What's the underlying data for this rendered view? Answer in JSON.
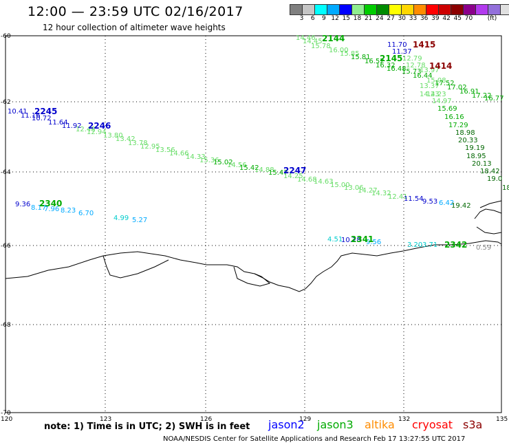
{
  "header": {
    "title": "12:00 — 23:59 UTC 02/16/2017",
    "subtitle": "12 hour collection of altimeter wave heights"
  },
  "colorbar": {
    "colors": [
      "#808080",
      "#c6c6c6",
      "#00ffff",
      "#00aaff",
      "#0000ff",
      "#90ee90",
      "#00cd00",
      "#008b00",
      "#ffff00",
      "#ffd700",
      "#ff8c00",
      "#ff0000",
      "#cd0000",
      "#8b0000",
      "#8b008b",
      "#b23aee",
      "#9370db",
      "#e0e0e0",
      "#000000"
    ],
    "labels": [
      "3",
      "6",
      "9",
      "12",
      "15",
      "18",
      "21",
      "24",
      "27",
      "30",
      "33",
      "36",
      "39",
      "42",
      "45",
      "70"
    ],
    "unit": "(ft)"
  },
  "axes": {
    "lat_labels": [
      "-60",
      "-62",
      "-64",
      "-66",
      "-68",
      "-70"
    ],
    "lon_labels": [
      "120",
      "123",
      "126",
      "129",
      "132",
      "135"
    ]
  },
  "passes": [
    {
      "id": "2144",
      "color": "#00aa00"
    },
    {
      "id": "2145",
      "color": "#00aa00"
    },
    {
      "id": "1415",
      "color": "#8b0000"
    },
    {
      "id": "1414",
      "color": "#8b0000"
    },
    {
      "id": "2245",
      "color": "#0000cc"
    },
    {
      "id": "2246",
      "color": "#0000cc"
    },
    {
      "id": "2247",
      "color": "#0000cc"
    },
    {
      "id": "2340",
      "color": "#00aa00"
    },
    {
      "id": "2341",
      "color": "#00aa00"
    },
    {
      "id": "2342",
      "color": "#00aa00"
    }
  ],
  "values": [
    {
      "t": "14.46",
      "c": "#66dd66"
    },
    {
      "t": "14.45",
      "c": "#66dd66"
    },
    {
      "t": "15.78",
      "c": "#66dd66"
    },
    {
      "t": "16.00",
      "c": "#66dd66"
    },
    {
      "t": "15.85",
      "c": "#66dd66"
    },
    {
      "t": "15.81",
      "c": "#00aa00"
    },
    {
      "t": "16.52",
      "c": "#00aa00"
    },
    {
      "t": "16.32",
      "c": "#00aa00"
    },
    {
      "t": "16.48",
      "c": "#00aa00"
    },
    {
      "t": "15.73",
      "c": "#00aa00"
    },
    {
      "t": "16.44",
      "c": "#00aa00"
    },
    {
      "t": "11.70",
      "c": "#0000cc"
    },
    {
      "t": "11.37",
      "c": "#0000cc"
    },
    {
      "t": "12.79",
      "c": "#66dd66"
    },
    {
      "t": "12.78",
      "c": "#66dd66"
    },
    {
      "t": "13.97",
      "c": "#66dd66"
    },
    {
      "t": "15.08",
      "c": "#66dd66"
    },
    {
      "t": "14.23",
      "c": "#66dd66"
    },
    {
      "t": "13.37",
      "c": "#66dd66"
    },
    {
      "t": "17.52",
      "c": "#00aa00"
    },
    {
      "t": "17.02",
      "c": "#00aa00"
    },
    {
      "t": "16.91",
      "c": "#00aa00"
    },
    {
      "t": "17.22",
      "c": "#00aa00"
    },
    {
      "t": "16.77",
      "c": "#00aa00"
    },
    {
      "t": "14.23",
      "c": "#66dd66"
    },
    {
      "t": "14.97",
      "c": "#66dd66"
    },
    {
      "t": "15.69",
      "c": "#00aa00"
    },
    {
      "t": "16.16",
      "c": "#00aa00"
    },
    {
      "t": "17.29",
      "c": "#00aa00"
    },
    {
      "t": "18.98",
      "c": "#006600"
    },
    {
      "t": "20.33",
      "c": "#006600"
    },
    {
      "t": "19.19",
      "c": "#006600"
    },
    {
      "t": "18.95",
      "c": "#006600"
    },
    {
      "t": "20.13",
      "c": "#006600"
    },
    {
      "t": "18.42",
      "c": "#006600"
    },
    {
      "t": "19.0",
      "c": "#006600"
    },
    {
      "t": "18",
      "c": "#006600"
    },
    {
      "t": "10.41",
      "c": "#0000cc"
    },
    {
      "t": "11.16",
      "c": "#0000cc"
    },
    {
      "t": "10.72",
      "c": "#0000cc"
    },
    {
      "t": "11.64",
      "c": "#0000cc"
    },
    {
      "t": "11.92",
      "c": "#0000cc"
    },
    {
      "t": "12.48",
      "c": "#66dd66"
    },
    {
      "t": "12.94",
      "c": "#66dd66"
    },
    {
      "t": "13.80",
      "c": "#66dd66"
    },
    {
      "t": "13.42",
      "c": "#66dd66"
    },
    {
      "t": "13.78",
      "c": "#66dd66"
    },
    {
      "t": "12.95",
      "c": "#66dd66"
    },
    {
      "t": "13.56",
      "c": "#66dd66"
    },
    {
      "t": "14.66",
      "c": "#66dd66"
    },
    {
      "t": "14.33",
      "c": "#66dd66"
    },
    {
      "t": "15.36",
      "c": "#66dd66"
    },
    {
      "t": "15.02",
      "c": "#00aa00"
    },
    {
      "t": "14.56",
      "c": "#66dd66"
    },
    {
      "t": "15.42",
      "c": "#00aa00"
    },
    {
      "t": "14.88",
      "c": "#66dd66"
    },
    {
      "t": "15.47",
      "c": "#00aa00"
    },
    {
      "t": "14.25",
      "c": "#66dd66"
    },
    {
      "t": "14.68",
      "c": "#66dd66"
    },
    {
      "t": "14.63",
      "c": "#66dd66"
    },
    {
      "t": "15.00",
      "c": "#66dd66"
    },
    {
      "t": "13.06",
      "c": "#66dd66"
    },
    {
      "t": "14.27",
      "c": "#66dd66"
    },
    {
      "t": "14.32",
      "c": "#66dd66"
    },
    {
      "t": "12.41",
      "c": "#66dd66"
    },
    {
      "t": "11.54",
      "c": "#0000cc"
    },
    {
      "t": "9.53",
      "c": "#0000cc"
    },
    {
      "t": "6.42",
      "c": "#00aaff"
    },
    {
      "t": "19.42",
      "c": "#006600"
    },
    {
      "t": "9.36",
      "c": "#0000cc"
    },
    {
      "t": "8.17",
      "c": "#00aaff"
    },
    {
      "t": "7.96",
      "c": "#00aaff"
    },
    {
      "t": "8.23",
      "c": "#00aaff"
    },
    {
      "t": "6.70",
      "c": "#00aaff"
    },
    {
      "t": "4.99",
      "c": "#00cccc"
    },
    {
      "t": "5.27",
      "c": "#00aaff"
    },
    {
      "t": "4.51",
      "c": "#00cccc"
    },
    {
      "t": "10.28",
      "c": "#0000cc"
    },
    {
      "t": "9.56",
      "c": "#00aaff"
    },
    {
      "t": "3.20",
      "c": "#00cccc"
    },
    {
      "t": "3.71",
      "c": "#00cccc"
    },
    {
      "t": "0.59",
      "c": "#888888"
    }
  ],
  "footer": {
    "note": "note:  1) Time is in UTC;  2) SWH is in feet",
    "legend": [
      {
        "label": "jason2",
        "color": "#0000ff"
      },
      {
        "label": "jason3",
        "color": "#00aa00"
      },
      {
        "label": "altika",
        "color": "#ff8c00"
      },
      {
        "label": "cryosat",
        "color": "#ff0000"
      },
      {
        "label": "s3a",
        "color": "#8b0000"
      }
    ],
    "credit": "NOAA/NESDIS Center for Satellite Applications and Research     Feb 17 13:27:55 UTC 2017"
  }
}
